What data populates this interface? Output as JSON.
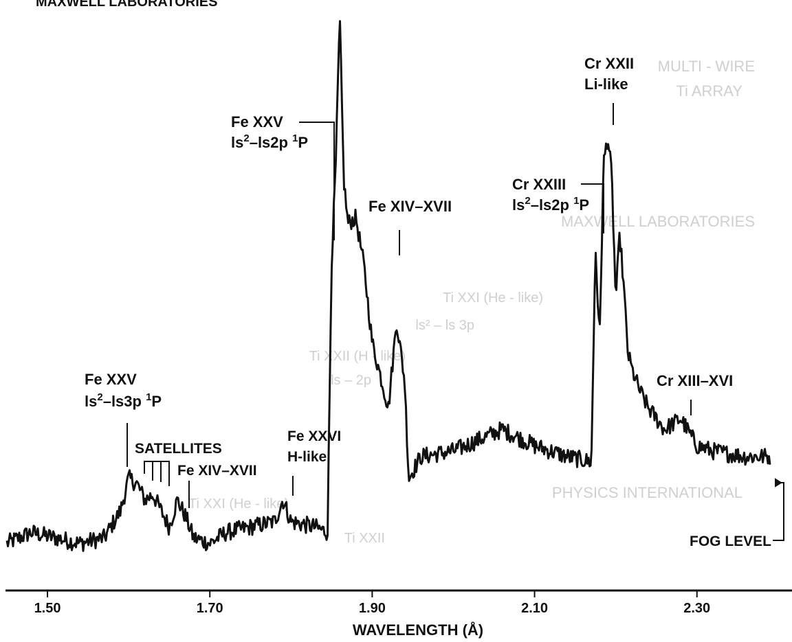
{
  "header_text": "MAXWELL LABORATORIES",
  "chart_data": {
    "type": "line",
    "title": "",
    "xlabel": "WAVELENGTH (Å)",
    "ylabel": "",
    "xlim": [
      1.45,
      2.39
    ],
    "ylim": [
      0,
      100
    ],
    "x_ticks": [
      1.5,
      1.7,
      1.9,
      2.1,
      2.3
    ],
    "x_tick_labels": [
      "1.50",
      "1.70",
      "1.90",
      "2.10",
      "2.30"
    ],
    "y_axis": "relative intensity (no scale shown)",
    "grid": false,
    "line_color": "#111111",
    "series": [
      {
        "x": [
          1.45,
          1.48,
          1.51,
          1.54,
          1.57,
          1.59,
          1.6,
          1.61,
          1.62,
          1.63,
          1.64,
          1.65,
          1.66,
          1.67,
          1.68,
          1.7,
          1.72,
          1.75,
          1.78,
          1.79,
          1.8,
          1.83,
          1.845,
          1.85,
          1.855,
          1.86,
          1.865,
          1.87,
          1.88,
          1.89,
          1.9,
          1.91,
          1.92,
          1.93,
          1.94,
          1.945,
          1.96,
          2.0,
          2.03,
          2.06,
          2.1,
          2.14,
          2.17,
          2.175,
          2.18,
          2.185,
          2.19,
          2.195,
          2.2,
          2.205,
          2.21,
          2.215,
          2.22,
          2.23,
          2.24,
          2.26,
          2.28,
          2.3,
          2.32,
          2.36,
          2.39
        ],
        "y": [
          3,
          5,
          4,
          3,
          4,
          9,
          15,
          14,
          11,
          12,
          9,
          6,
          11,
          8,
          4,
          3,
          5,
          6,
          7,
          11,
          7,
          6,
          5,
          55,
          72,
          100,
          70,
          62,
          63,
          54,
          40,
          34,
          28,
          44,
          33,
          15,
          19,
          20,
          22,
          24,
          21,
          19,
          18,
          58,
          40,
          73,
          78,
          71,
          48,
          60,
          50,
          38,
          35,
          31,
          28,
          24,
          26,
          21,
          20,
          19,
          19
        ]
      }
    ],
    "annotations": [
      {
        "text": "Fe XXV",
        "text2": "ls2–ls2p 1P",
        "x": 1.855
      },
      {
        "text": "Fe XIV–XVII",
        "x": 1.925
      },
      {
        "text": "Cr XXII",
        "text2": "Li-like",
        "x": 2.19
      },
      {
        "text": "Cr XXIII",
        "text2": "ls2–ls2p 1P",
        "x": 2.18
      },
      {
        "text": "Cr XIII–XVI",
        "x": 2.28
      },
      {
        "text": "Fe XXV",
        "text2": "ls2–ls3p 1P",
        "x": 1.595
      },
      {
        "text": "SATELLITES",
        "x": 1.625
      },
      {
        "text": "Fe XIV–XVII",
        "x": 1.665
      },
      {
        "text": "Fe XXVI",
        "text2": "H-like",
        "x": 1.785
      },
      {
        "text": "FOG LEVEL"
      }
    ]
  },
  "labels": {
    "fe25_a": "Fe XXV",
    "fe25_b_pre": "ls",
    "fe25_b_sup": "2",
    "fe25_b_mid": "–ls2p ",
    "fe25_b_sup2": "1",
    "fe25_b_end": "P",
    "fe14_top": "Fe XIV–XVII",
    "cr22_a": "Cr XXII",
    "cr22_b": "Li-like",
    "cr23_a": "Cr XXIII",
    "cr23_b_pre": "ls",
    "cr23_b_sup": "2",
    "cr23_b_mid": "–ls2p ",
    "cr23_b_sup2": "1",
    "cr23_b_end": "P",
    "cr13": "Cr XIII–XVI",
    "fe25_low_a": "Fe XXV",
    "fe25_low_b_pre": "ls",
    "fe25_low_b_sup": "2",
    "fe25_low_b_mid": "–ls3p ",
    "fe25_low_b_sup2": "1",
    "fe25_low_b_end": "P",
    "satellites": "SATELLITES",
    "fe14_low": "Fe XIV–XVII",
    "fe26_a": "Fe XXVI",
    "fe26_b": "H-like",
    "fog": "FOG LEVEL"
  },
  "ghost_text": {
    "multi": "MULTI - WIRE",
    "tiarray": "Ti ARRAY",
    "maxwell": "MAXWELL LABORATORIES",
    "ti1": "Ti XXI (He - like)",
    "ti2": "ls² – ls 3p",
    "ti3": "Ti XXII (H - like)",
    "ti4": "ls – 2p",
    "physics": "PHYSICS INTERNATIONAL",
    "ti5": "Ti XXI (He - like)",
    "ti6": "Ti XXII"
  }
}
